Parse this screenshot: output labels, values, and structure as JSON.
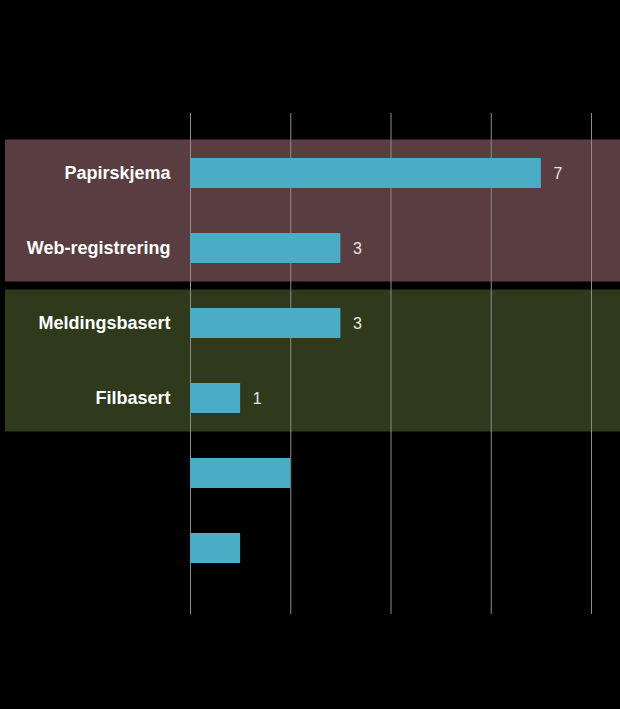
{
  "chart_data": {
    "type": "bar",
    "orientation": "horizontal",
    "categories": [
      "Papirskjema",
      "Web-registrering",
      "Meldingsbasert",
      "Filbasert",
      null,
      null
    ],
    "values": [
      7,
      3,
      3,
      1,
      2,
      1
    ],
    "value_labels": [
      "7",
      "3",
      "3",
      "1",
      null,
      null
    ],
    "data_labels": true,
    "color": "#4bacc6",
    "xlim": [
      0,
      8
    ],
    "xticks": [
      0,
      2,
      4,
      6,
      8
    ],
    "grid": true,
    "tick_labels": "y"
  }
}
